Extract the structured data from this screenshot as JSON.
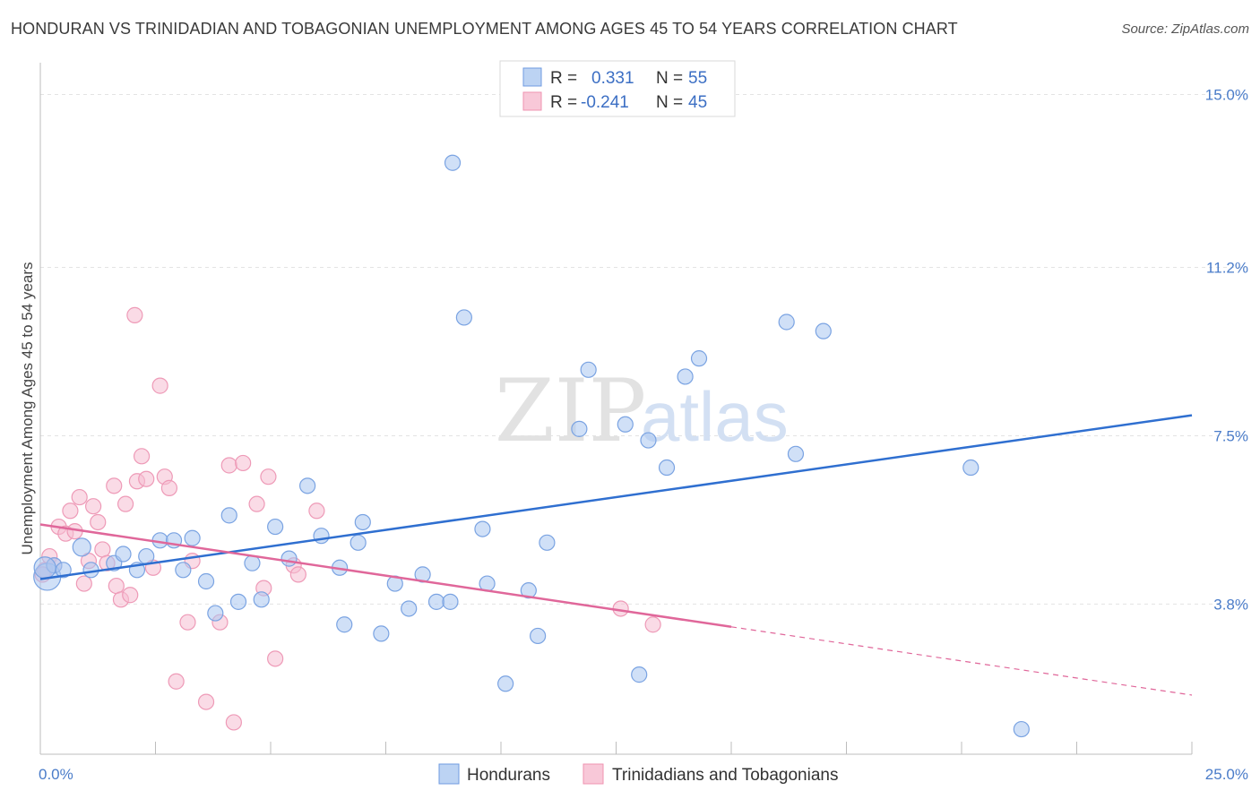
{
  "header": {
    "title": "HONDURAN VS TRINIDADIAN AND TOBAGONIAN UNEMPLOYMENT AMONG AGES 45 TO 54 YEARS CORRELATION CHART",
    "source": "Source: ZipAtlas.com"
  },
  "watermark": {
    "zip": "ZIP",
    "atlas": "atlas"
  },
  "legend_top": {
    "r_label": "R =",
    "n_label": "N =",
    "rows": [
      {
        "r": "0.331",
        "n": "55"
      },
      {
        "r": "-0.241",
        "n": "45"
      }
    ]
  },
  "chart_data": {
    "type": "scatter",
    "title": "HONDURAN VS TRINIDADIAN AND TOBAGONIAN UNEMPLOYMENT AMONG AGES 45 TO 54 YEARS CORRELATION CHART",
    "xlabel": "",
    "ylabel": "Unemployment Among Ages 45 to 54 years",
    "xlim": [
      0,
      25
    ],
    "ylim": [
      0.5,
      15.7
    ],
    "x_tick_labels": [
      "0.0%",
      "25.0%"
    ],
    "y_ticks": [
      {
        "value": 3.8,
        "label": "3.8%"
      },
      {
        "value": 7.5,
        "label": "7.5%"
      },
      {
        "value": 11.2,
        "label": "11.2%"
      },
      {
        "value": 15.0,
        "label": "15.0%"
      }
    ],
    "grid": true,
    "legend_position": "bottom",
    "colors": {
      "hondurans": "#6f9be0",
      "trinidadians": "#ef93b1",
      "hondurans_line": "#2f6fd0",
      "trinidadians_line": "#e0679a"
    },
    "series": [
      {
        "name": "Hondurans",
        "r": 0.331,
        "n": 55,
        "trend": {
          "x": [
            0,
            25
          ],
          "y": [
            4.35,
            7.95
          ],
          "dashed_from": null
        },
        "points": [
          [
            0.15,
            4.4
          ],
          [
            0.3,
            4.65
          ],
          [
            0.9,
            5.05
          ],
          [
            1.1,
            4.55
          ],
          [
            1.6,
            4.7
          ],
          [
            1.8,
            4.9
          ],
          [
            2.1,
            4.55
          ],
          [
            2.3,
            4.85
          ],
          [
            2.6,
            5.2
          ],
          [
            2.9,
            5.2
          ],
          [
            3.1,
            4.55
          ],
          [
            3.3,
            5.25
          ],
          [
            3.6,
            4.3
          ],
          [
            3.8,
            3.6
          ],
          [
            4.1,
            5.75
          ],
          [
            4.3,
            3.85
          ],
          [
            4.6,
            4.7
          ],
          [
            4.8,
            3.9
          ],
          [
            5.1,
            5.5
          ],
          [
            5.4,
            4.8
          ],
          [
            5.8,
            6.4
          ],
          [
            6.1,
            5.3
          ],
          [
            6.5,
            4.6
          ],
          [
            6.6,
            3.35
          ],
          [
            6.9,
            5.15
          ],
          [
            7.0,
            5.6
          ],
          [
            7.4,
            3.15
          ],
          [
            7.7,
            4.25
          ],
          [
            8.0,
            3.7
          ],
          [
            8.3,
            4.45
          ],
          [
            8.6,
            3.85
          ],
          [
            8.9,
            3.85
          ],
          [
            8.95,
            13.5
          ],
          [
            9.2,
            10.1
          ],
          [
            9.6,
            5.45
          ],
          [
            9.7,
            4.25
          ],
          [
            10.1,
            2.05
          ],
          [
            10.6,
            4.1
          ],
          [
            10.8,
            3.1
          ],
          [
            11.0,
            5.15
          ],
          [
            11.9,
            8.95
          ],
          [
            11.7,
            7.65
          ],
          [
            12.7,
            7.75
          ],
          [
            13.0,
            2.25
          ],
          [
            13.2,
            7.4
          ],
          [
            13.6,
            6.8
          ],
          [
            14.0,
            8.8
          ],
          [
            14.3,
            9.2
          ],
          [
            16.2,
            10.0
          ],
          [
            16.4,
            7.1
          ],
          [
            17.0,
            9.8
          ],
          [
            20.2,
            6.8
          ],
          [
            21.3,
            1.05
          ],
          [
            0.5,
            4.55
          ],
          [
            0.1,
            4.6
          ]
        ]
      },
      {
        "name": "Trinidadians and Tobagonians",
        "r": -0.241,
        "n": 45,
        "trend": {
          "x": [
            0,
            15
          ],
          "y": [
            5.55,
            3.3
          ],
          "dashed_to": [
            25,
            1.8
          ]
        },
        "points": [
          [
            0.1,
            4.55
          ],
          [
            0.2,
            4.85
          ],
          [
            0.3,
            4.65
          ],
          [
            0.4,
            5.5
          ],
          [
            0.55,
            5.35
          ],
          [
            0.65,
            5.85
          ],
          [
            0.75,
            5.4
          ],
          [
            0.85,
            6.15
          ],
          [
            0.95,
            4.25
          ],
          [
            1.05,
            4.75
          ],
          [
            1.15,
            5.95
          ],
          [
            1.25,
            5.6
          ],
          [
            1.35,
            5.0
          ],
          [
            1.45,
            4.7
          ],
          [
            1.6,
            6.4
          ],
          [
            1.65,
            4.2
          ],
          [
            1.75,
            3.9
          ],
          [
            1.85,
            6.0
          ],
          [
            1.95,
            4.0
          ],
          [
            2.05,
            10.15
          ],
          [
            2.1,
            6.5
          ],
          [
            2.2,
            7.05
          ],
          [
            2.3,
            6.55
          ],
          [
            2.45,
            4.6
          ],
          [
            2.6,
            8.6
          ],
          [
            2.7,
            6.6
          ],
          [
            2.8,
            6.35
          ],
          [
            2.95,
            2.1
          ],
          [
            3.2,
            3.4
          ],
          [
            3.3,
            4.75
          ],
          [
            3.6,
            1.65
          ],
          [
            3.9,
            3.4
          ],
          [
            4.1,
            6.85
          ],
          [
            4.2,
            1.2
          ],
          [
            4.4,
            6.9
          ],
          [
            4.7,
            6.0
          ],
          [
            4.85,
            4.15
          ],
          [
            4.95,
            6.6
          ],
          [
            5.1,
            2.6
          ],
          [
            5.5,
            4.65
          ],
          [
            5.6,
            4.45
          ],
          [
            6.0,
            5.85
          ],
          [
            12.6,
            3.7
          ],
          [
            13.3,
            3.35
          ],
          [
            0.05,
            4.45
          ]
        ]
      }
    ]
  }
}
